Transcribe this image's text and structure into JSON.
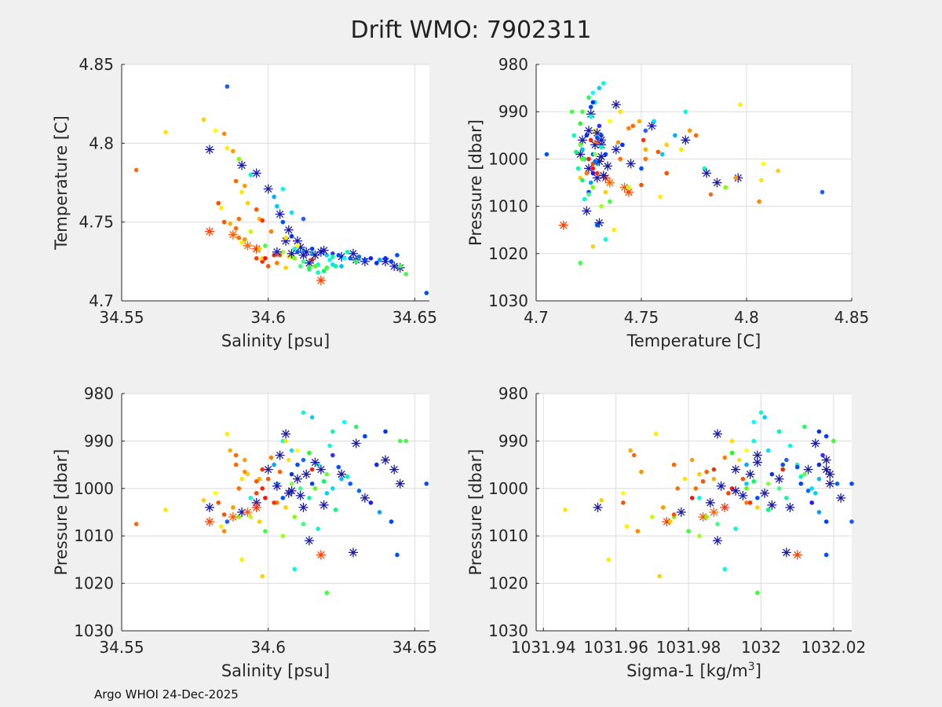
{
  "title": "Drift WMO: 7902311",
  "footer": "Argo WHOI 24-Dec-2025",
  "colors": {
    "background": "#f0f0f0",
    "axes": "#ffffff",
    "grid": "#dcdcdc",
    "star": "#1a1aa6"
  },
  "chart_data": [
    {
      "type": "scatter",
      "xlabel": "Salinity [psu]",
      "ylabel": "Temperature [C]",
      "xlim": [
        34.55,
        34.655
      ],
      "ylim": [
        4.7,
        4.85
      ],
      "xticks": [
        34.55,
        34.6,
        34.65
      ],
      "xtick_labels": [
        "34.55",
        "34.6",
        "34.65"
      ],
      "yticks": [
        4.7,
        4.75,
        4.8,
        4.85
      ],
      "ytick_labels": [
        "4.7",
        "4.75",
        "4.8",
        "4.85"
      ],
      "y_reversed": false,
      "x": "salinity",
      "y": "temperature"
    },
    {
      "type": "scatter",
      "xlabel": "Temperature [C]",
      "ylabel": "Pressure [dbar]",
      "xlim": [
        4.7,
        4.85
      ],
      "ylim": [
        980,
        1030
      ],
      "xticks": [
        4.7,
        4.75,
        4.8,
        4.85
      ],
      "xtick_labels": [
        "4.7",
        "4.75",
        "4.8",
        "4.85"
      ],
      "yticks": [
        980,
        990,
        1000,
        1010,
        1020,
        1030
      ],
      "ytick_labels": [
        "980",
        "990",
        "1000",
        "1010",
        "1020",
        "1030"
      ],
      "y_reversed": true,
      "x": "temperature",
      "y": "pressure"
    },
    {
      "type": "scatter",
      "xlabel": "Salinity [psu]",
      "ylabel": "Pressure [dbar]",
      "xlim": [
        34.55,
        34.655
      ],
      "ylim": [
        980,
        1030
      ],
      "xticks": [
        34.55,
        34.6,
        34.65
      ],
      "xtick_labels": [
        "34.55",
        "34.6",
        "34.65"
      ],
      "yticks": [
        980,
        990,
        1000,
        1010,
        1020,
        1030
      ],
      "ytick_labels": [
        "980",
        "990",
        "1000",
        "1010",
        "1020",
        "1030"
      ],
      "y_reversed": true,
      "x": "salinity",
      "y": "pressure"
    },
    {
      "type": "scatter",
      "xlabel": "Sigma-1 [kg/m",
      "xlabel_sup": "3",
      "xlabel_close": "]",
      "ylabel": "Pressure [dbar]",
      "xlim": [
        1031.938,
        1032.025
      ],
      "ylim": [
        980,
        1030
      ],
      "xticks": [
        1031.94,
        1031.96,
        1031.98,
        1032,
        1032.02
      ],
      "xtick_labels": [
        "1031.94",
        "1031.96",
        "1031.98",
        "1032",
        "1032.02"
      ],
      "yticks": [
        980,
        990,
        1000,
        1010,
        1020,
        1030
      ],
      "ytick_labels": [
        "980",
        "990",
        "1000",
        "1010",
        "1020",
        "1030"
      ],
      "y_reversed": true,
      "x": "sigma1",
      "y": "pressure"
    }
  ],
  "observations": {
    "fields": [
      "salinity",
      "temperature",
      "pressure",
      "sigma1",
      "color",
      "marker"
    ],
    "rows": [
      [
        34.586,
        4.836,
        1007.0,
        1032.025,
        "#1e5aff",
        "dot"
      ],
      [
        34.555,
        4.783,
        1007.5,
        1031.937,
        "#ff6a10",
        "dot"
      ],
      [
        34.565,
        4.807,
        1004.5,
        1031.946,
        "#ffe600",
        "dot"
      ],
      [
        34.578,
        4.815,
        1002.5,
        1031.956,
        "#ffd000",
        "dot"
      ],
      [
        34.582,
        4.808,
        1001.0,
        1031.962,
        "#ffff00",
        "dot"
      ],
      [
        34.585,
        4.806,
        1009.0,
        1031.966,
        "#ff8a00",
        "dot"
      ],
      [
        34.586,
        4.797,
        988.5,
        1031.971,
        "#ffee00",
        "dot"
      ],
      [
        34.58,
        4.796,
        1004.0,
        1031.955,
        "#1a1aa6",
        "star"
      ],
      [
        34.588,
        4.795,
        1004.0,
        1031.973,
        "#ff9a00",
        "dot"
      ],
      [
        34.59,
        4.79,
        1006.0,
        1031.976,
        "#80ff00",
        "dot"
      ],
      [
        34.591,
        4.786,
        1005.0,
        1031.978,
        "#1a1aa6",
        "star"
      ],
      [
        34.594,
        4.78,
        1002.0,
        1031.983,
        "#00ffd0",
        "dot"
      ],
      [
        34.596,
        4.781,
        1003.0,
        1031.986,
        "#1a1aa6",
        "star"
      ],
      [
        34.591,
        4.769,
        998.0,
        1031.979,
        "#ffe600",
        "dot"
      ],
      [
        34.593,
        4.762,
        997.0,
        1031.983,
        "#ffd000",
        "dot"
      ],
      [
        34.589,
        4.776,
        995.0,
        1031.976,
        "#ff6a00",
        "dot"
      ],
      [
        34.592,
        4.773,
        994.0,
        1031.981,
        "#ff9a00",
        "dot"
      ],
      [
        34.59,
        4.752,
        1000.0,
        1031.977,
        "#ff7000",
        "dot"
      ],
      [
        34.597,
        4.752,
        998.0,
        1031.987,
        "#ffb000",
        "dot"
      ],
      [
        34.6,
        4.771,
        996.0,
        1031.993,
        "#1a1aa6",
        "star"
      ],
      [
        34.602,
        4.766,
        995.0,
        1031.996,
        "#00aaff",
        "dot"
      ],
      [
        34.603,
        4.76,
        999.0,
        1031.996,
        "#00c8ff",
        "dot"
      ],
      [
        34.604,
        4.755,
        993.0,
        1031.999,
        "#1a1aa6",
        "star"
      ],
      [
        34.605,
        4.75,
        1002.0,
        1031.999,
        "#0050ff",
        "dot"
      ],
      [
        34.607,
        4.745,
        1001.0,
        1032.001,
        "#1a1aa6",
        "star"
      ],
      [
        34.608,
        4.741,
        997.0,
        1032.003,
        "#0030ff",
        "dot"
      ],
      [
        34.61,
        4.738,
        998.0,
        1032.005,
        "#1a1aa6",
        "star"
      ],
      [
        34.605,
        4.771,
        990.0,
        1031.998,
        "#00ffe0",
        "dot"
      ],
      [
        34.608,
        4.756,
        992.0,
        1032.002,
        "#00e0ff",
        "dot"
      ],
      [
        34.612,
        4.752,
        994.0,
        1032.007,
        "#2060ff",
        "dot"
      ],
      [
        34.61,
        4.731,
        995.0,
        1032.006,
        "#0050ff",
        "dot"
      ],
      [
        34.612,
        4.729,
        1004.0,
        1032.008,
        "#1a1aa6",
        "star"
      ],
      [
        34.615,
        4.733,
        999.0,
        1032.011,
        "#0040ff",
        "dot"
      ],
      [
        34.618,
        4.731,
        996.0,
        1032.013,
        "#1a1aa6",
        "star"
      ],
      [
        34.62,
        4.729,
        1001.0,
        1032.015,
        "#00d0ff",
        "dot"
      ],
      [
        34.622,
        4.73,
        993.0,
        1032.017,
        "#3030ff",
        "dot"
      ],
      [
        34.625,
        4.728,
        997.0,
        1032.019,
        "#1a1aa6",
        "star"
      ],
      [
        34.628,
        4.727,
        999.0,
        1032.021,
        "#0060ff",
        "dot"
      ],
      [
        34.63,
        4.726,
        990.5,
        1032.015,
        "#1a1aa6",
        "star"
      ],
      [
        34.633,
        4.725,
        1002.0,
        1032.022,
        "#1a1aa6",
        "star"
      ],
      [
        34.637,
        4.724,
        995.0,
        1032.016,
        "#0030ff",
        "dot"
      ],
      [
        34.64,
        4.725,
        994.0,
        1032.018,
        "#1a1aa6",
        "star"
      ],
      [
        34.643,
        4.722,
        996.0,
        1032.018,
        "#1a1aa6",
        "star"
      ],
      [
        34.645,
        4.721,
        999.0,
        1032.019,
        "#1a1aa6",
        "star"
      ],
      [
        34.647,
        4.717,
        990.0,
        1032.02,
        "#40ff40",
        "dot"
      ],
      [
        34.654,
        4.705,
        999.0,
        1032.025,
        "#0050ff",
        "dot"
      ],
      [
        34.596,
        4.727,
        1001.0,
        1031.991,
        "#ff4000",
        "dot"
      ],
      [
        34.598,
        4.725,
        1000.0,
        1031.992,
        "#ff2000",
        "dot"
      ],
      [
        34.6,
        4.722,
        998.0,
        1031.995,
        "#ff5500",
        "dot"
      ],
      [
        34.603,
        4.724,
        1003.0,
        1031.996,
        "#ff7a00",
        "dot"
      ],
      [
        34.606,
        4.721,
        1004.0,
        1031.999,
        "#ffd000",
        "dot"
      ],
      [
        34.608,
        4.728,
        999.0,
        1032.002,
        "#80ff40",
        "dot"
      ],
      [
        34.611,
        4.722,
        1000.0,
        1032.005,
        "#40ff80",
        "dot"
      ],
      [
        34.614,
        4.72,
        1002.0,
        1032.007,
        "#00ffa0",
        "dot"
      ],
      [
        34.617,
        4.718,
        995.0,
        1032.01,
        "#00ffc0",
        "dot"
      ],
      [
        34.62,
        4.721,
        997.0,
        1032.012,
        "#60ff40",
        "dot"
      ],
      [
        34.622,
        4.723,
        1000.0,
        1032.014,
        "#00e0ff",
        "dot"
      ],
      [
        34.625,
        4.722,
        998.0,
        1032.016,
        "#00c0ff",
        "dot"
      ],
      [
        34.588,
        4.742,
        1006.0,
        1031.984,
        "#ff5a00",
        "star"
      ],
      [
        34.593,
        4.735,
        1005.0,
        1031.987,
        "#ff6000",
        "star"
      ],
      [
        34.596,
        4.733,
        1004.0,
        1031.99,
        "#ff3000",
        "star"
      ],
      [
        34.58,
        4.744,
        1007.0,
        1031.974,
        "#ff4000",
        "star"
      ],
      [
        34.585,
        4.75,
        1005.5,
        1031.976,
        "#ff5000",
        "dot"
      ],
      [
        34.59,
        4.74,
        1000.0,
        1031.982,
        "#ff7000",
        "dot"
      ],
      [
        34.602,
        4.729,
        1003.0,
        1031.997,
        "#ff3000",
        "dot"
      ],
      [
        34.615,
        4.726,
        996.0,
        1032.006,
        "#ff2000",
        "dot"
      ],
      [
        34.618,
        4.713,
        1014.0,
        1032.01,
        "#ff4000",
        "star"
      ],
      [
        34.609,
        4.733,
        1017.0,
        1031.99,
        "#00ffe0",
        "dot"
      ],
      [
        34.598,
        4.727,
        1018.5,
        1031.972,
        "#ffd000",
        "dot"
      ],
      [
        34.62,
        4.721,
        1022.0,
        1031.999,
        "#40ff40",
        "dot"
      ],
      [
        34.591,
        4.737,
        1015.0,
        1031.958,
        "#ffee00",
        "dot"
      ],
      [
        34.614,
        4.724,
        1011.0,
        1031.988,
        "#1a1aa6",
        "star"
      ],
      [
        34.629,
        4.73,
        1013.5,
        1032.007,
        "#1a1aa6",
        "star"
      ],
      [
        34.644,
        4.729,
        1014.0,
        1032.018,
        "#0050ff",
        "dot"
      ],
      [
        34.605,
        4.731,
        1010.0,
        1031.983,
        "#a0ff20",
        "dot"
      ],
      [
        34.599,
        4.735,
        1009.0,
        1031.98,
        "#40ff40",
        "dot"
      ],
      [
        34.612,
        4.732,
        984.0,
        1032.0,
        "#00ffd0",
        "dot"
      ],
      [
        34.615,
        4.73,
        985.0,
        1032.001,
        "#00d0ff",
        "dot"
      ],
      [
        34.622,
        4.728,
        988.0,
        1032.005,
        "#00ffa0",
        "dot"
      ],
      [
        34.626,
        4.727,
        986.0,
        1031.998,
        "#00ffff",
        "dot"
      ],
      [
        34.63,
        4.725,
        987.0,
        1032.012,
        "#20ff60",
        "dot"
      ],
      [
        34.633,
        4.726,
        989.0,
        1032.018,
        "#0040ff",
        "dot"
      ],
      [
        34.64,
        4.727,
        988.0,
        1032.016,
        "#0030ff",
        "dot"
      ],
      [
        34.645,
        4.722,
        990.0,
        1032.02,
        "#40ff40",
        "dot"
      ],
      [
        34.607,
        4.728,
        994.0,
        1031.994,
        "#ffe000",
        "dot"
      ],
      [
        34.604,
        4.729,
        996.5,
        1031.985,
        "#ff6000",
        "dot"
      ],
      [
        34.599,
        4.727,
        1002.0,
        1031.981,
        "#ff1000",
        "dot"
      ],
      [
        34.597,
        4.733,
        1007.0,
        1031.975,
        "#ffd000",
        "dot"
      ],
      [
        34.594,
        4.744,
        1006.0,
        1031.97,
        "#c0ff00",
        "dot"
      ],
      [
        34.592,
        4.739,
        996.5,
        1031.967,
        "#ff9000",
        "dot"
      ],
      [
        34.589,
        4.746,
        993.0,
        1031.965,
        "#ff6a00",
        "dot"
      ],
      [
        34.587,
        4.749,
        992.0,
        1031.964,
        "#ffb000",
        "dot"
      ],
      [
        34.583,
        4.762,
        1003.0,
        1031.962,
        "#ff5000",
        "dot"
      ],
      [
        34.584,
        4.759,
        1008.0,
        1031.963,
        "#ffee00",
        "dot"
      ],
      [
        34.603,
        4.731,
        999.5,
        1031.989,
        "#1a1aa6",
        "star"
      ],
      [
        34.608,
        4.73,
        1000.5,
        1031.993,
        "#1a1aa6",
        "star"
      ],
      [
        34.611,
        4.734,
        1001.5,
        1031.995,
        "#1a1aa6",
        "star"
      ],
      [
        34.613,
        4.731,
        997.0,
        1031.997,
        "#1a1aa6",
        "star"
      ],
      [
        34.616,
        4.729,
        994.5,
        1031.999,
        "#1a1aa6",
        "star"
      ],
      [
        34.606,
        4.738,
        988.5,
        1031.988,
        "#1a1aa6",
        "star"
      ],
      [
        34.619,
        4.732,
        1003.5,
        1032.003,
        "#1a1aa6",
        "star"
      ],
      [
        34.621,
        4.726,
        991.0,
        1032.008,
        "#00ffe0",
        "dot"
      ],
      [
        34.624,
        4.729,
        995.5,
        1032.01,
        "#0050ff",
        "dot"
      ],
      [
        34.627,
        4.731,
        997.5,
        1032.011,
        "#00ffb0",
        "dot"
      ],
      [
        34.631,
        4.728,
        1000.5,
        1032.013,
        "#0070ff",
        "dot"
      ],
      [
        34.635,
        4.727,
        1003.0,
        1032.014,
        "#1a1aff",
        "dot"
      ],
      [
        34.638,
        4.726,
        1005.0,
        1032.016,
        "#00a0ff",
        "dot"
      ],
      [
        34.642,
        4.725,
        1007.0,
        1032.018,
        "#0040ff",
        "dot"
      ],
      [
        34.61,
        4.735,
        992.0,
        1031.996,
        "#ffff00",
        "dot"
      ],
      [
        34.606,
        4.74,
        990.0,
        1031.992,
        "#ffe000",
        "dot"
      ],
      [
        34.601,
        4.744,
        993.5,
        1031.99,
        "#ff8000",
        "dot"
      ],
      [
        34.598,
        4.751,
        996.0,
        1031.987,
        "#ff3000",
        "dot"
      ],
      [
        34.596,
        4.758,
        998.5,
        1031.984,
        "#ff5500",
        "dot"
      ],
      [
        34.609,
        4.727,
        1006.0,
        1031.985,
        "#80ff00",
        "dot"
      ],
      [
        34.612,
        4.725,
        1007.5,
        1031.988,
        "#40ff80",
        "dot"
      ],
      [
        34.617,
        4.723,
        1008.5,
        1031.993,
        "#00ffd0",
        "dot"
      ],
      [
        34.623,
        4.722,
        1004.5,
        1032.002,
        "#00ff80",
        "dot"
      ],
      [
        34.614,
        4.721,
        992.5,
        1031.992,
        "#20ff20",
        "dot"
      ],
      [
        34.619,
        4.719,
        998.5,
        1031.998,
        "#00ff60",
        "dot"
      ],
      [
        34.616,
        4.722,
        1000.0,
        1031.996,
        "#60ff00",
        "dot"
      ]
    ]
  }
}
